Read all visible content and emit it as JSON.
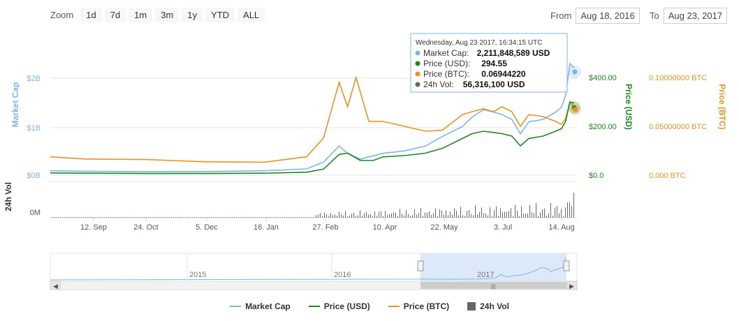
{
  "zoom": {
    "label": "Zoom",
    "buttons": [
      "1d",
      "7d",
      "1m",
      "3m",
      "1y",
      "YTD",
      "ALL"
    ]
  },
  "range": {
    "from_label": "From",
    "from_value": "Aug 18, 2016",
    "to_label": "To",
    "to_value": "Aug 23, 2017"
  },
  "tooltip": {
    "date": "Wednesday, Aug 23 2017, 16:34:15 UTC",
    "rows": [
      {
        "label": "Market Cap:",
        "value": "2,211,848,589 USD",
        "color": "#7cb5ec"
      },
      {
        "label": "Price (USD):",
        "value": "294.55",
        "color": "#1a8a1a"
      },
      {
        "label": "Price (BTC):",
        "value": "0.06944220",
        "color": "#f0901e"
      },
      {
        "label": "24h Vol:",
        "value": "56,316,100 USD",
        "color": "#666666"
      }
    ]
  },
  "colors": {
    "market_cap": "#7cb5ec",
    "price_usd": "#1a8a1a",
    "price_btc": "#f0901e",
    "volume": "#666666"
  },
  "chart_data": {
    "type": "line",
    "x_tick_labels": [
      "12. Sep",
      "24. Oct",
      "5. Dec",
      "16. Jan",
      "27. Feb",
      "10. Apr",
      "22. May",
      "3. Jul",
      "14. Aug"
    ],
    "x_range": [
      "2016-08-18",
      "2017-08-23"
    ],
    "axes": {
      "market_cap": {
        "label": "Market Cap",
        "ticks": [
          "$0B",
          "$1B",
          "$2B"
        ],
        "range": [
          0,
          2000000000
        ]
      },
      "price_usd": {
        "label": "Price (USD)",
        "ticks": [
          "$0.0",
          "$200.00",
          "$400.00"
        ],
        "range": [
          0,
          400
        ]
      },
      "price_btc": {
        "label": "Price (BTC)",
        "ticks": [
          "0.000 BTC",
          "0.05000000 BTC",
          "0.10000000 BTC"
        ],
        "range": [
          0,
          0.1
        ]
      },
      "volume": {
        "label": "24h Vol",
        "ticks": [
          "0M"
        ]
      }
    },
    "series": [
      {
        "name": "Market Cap",
        "key": "market_cap",
        "x": [
          "2016-08-18",
          "2016-09-12",
          "2016-10-24",
          "2016-12-05",
          "2017-01-16",
          "2017-02-15",
          "2017-02-27",
          "2017-03-10",
          "2017-03-16",
          "2017-03-25",
          "2017-04-03",
          "2017-04-10",
          "2017-04-25",
          "2017-05-10",
          "2017-05-22",
          "2017-06-05",
          "2017-06-12",
          "2017-06-20",
          "2017-06-27",
          "2017-07-03",
          "2017-07-10",
          "2017-07-16",
          "2017-07-22",
          "2017-08-01",
          "2017-08-10",
          "2017-08-14",
          "2017-08-17",
          "2017-08-20",
          "2017-08-23"
        ],
        "values": [
          90000000,
          80000000,
          70000000,
          75000000,
          90000000,
          130000000,
          270000000,
          600000000,
          450000000,
          330000000,
          400000000,
          450000000,
          500000000,
          600000000,
          800000000,
          1000000000,
          1200000000,
          1350000000,
          1300000000,
          1250000000,
          1150000000,
          850000000,
          1100000000,
          1150000000,
          1300000000,
          1400000000,
          1650000000,
          2300000000,
          2211848589
        ]
      },
      {
        "name": "Price (USD)",
        "key": "price_usd",
        "x": [
          "2016-08-18",
          "2016-09-12",
          "2016-10-24",
          "2016-12-05",
          "2017-01-16",
          "2017-02-15",
          "2017-02-27",
          "2017-03-10",
          "2017-03-16",
          "2017-03-25",
          "2017-04-03",
          "2017-04-10",
          "2017-04-25",
          "2017-05-10",
          "2017-05-22",
          "2017-06-05",
          "2017-06-12",
          "2017-06-20",
          "2017-06-27",
          "2017-07-03",
          "2017-07-10",
          "2017-07-16",
          "2017-07-22",
          "2017-08-01",
          "2017-08-10",
          "2017-08-14",
          "2017-08-17",
          "2017-08-20",
          "2017-08-23"
        ],
        "values": [
          9,
          8,
          7,
          7,
          8,
          12,
          25,
          85,
          90,
          60,
          60,
          75,
          80,
          90,
          110,
          150,
          170,
          180,
          175,
          170,
          160,
          120,
          150,
          160,
          180,
          190,
          220,
          300,
          294.55
        ]
      },
      {
        "name": "Price (BTC)",
        "key": "price_btc",
        "x": [
          "2016-08-18",
          "2016-09-12",
          "2016-10-24",
          "2016-12-05",
          "2017-01-16",
          "2017-02-15",
          "2017-02-27",
          "2017-03-10",
          "2017-03-16",
          "2017-03-22",
          "2017-03-31",
          "2017-04-10",
          "2017-04-25",
          "2017-05-10",
          "2017-05-22",
          "2017-06-05",
          "2017-06-12",
          "2017-06-20",
          "2017-06-27",
          "2017-07-03",
          "2017-07-10",
          "2017-07-16",
          "2017-07-22",
          "2017-08-01",
          "2017-08-10",
          "2017-08-14",
          "2017-08-17",
          "2017-08-20",
          "2017-08-23"
        ],
        "values": [
          0.0188,
          0.0165,
          0.016,
          0.0137,
          0.0133,
          0.0188,
          0.038,
          0.095,
          0.07,
          0.1,
          0.055,
          0.055,
          0.05,
          0.045,
          0.046,
          0.062,
          0.065,
          0.068,
          0.065,
          0.07,
          0.065,
          0.05,
          0.062,
          0.06,
          0.055,
          0.052,
          0.058,
          0.075,
          0.0694422
        ]
      }
    ],
    "volume_note": "24h Vol bars rise sharply from late Feb 2017",
    "navigator": {
      "labels": [
        "2015",
        "2016",
        "2017"
      ],
      "selected_range": [
        "2016-08-18",
        "2017-08-23"
      ]
    },
    "legend": [
      "Market Cap",
      "Price (USD)",
      "Price (BTC)",
      "24h Vol"
    ]
  }
}
